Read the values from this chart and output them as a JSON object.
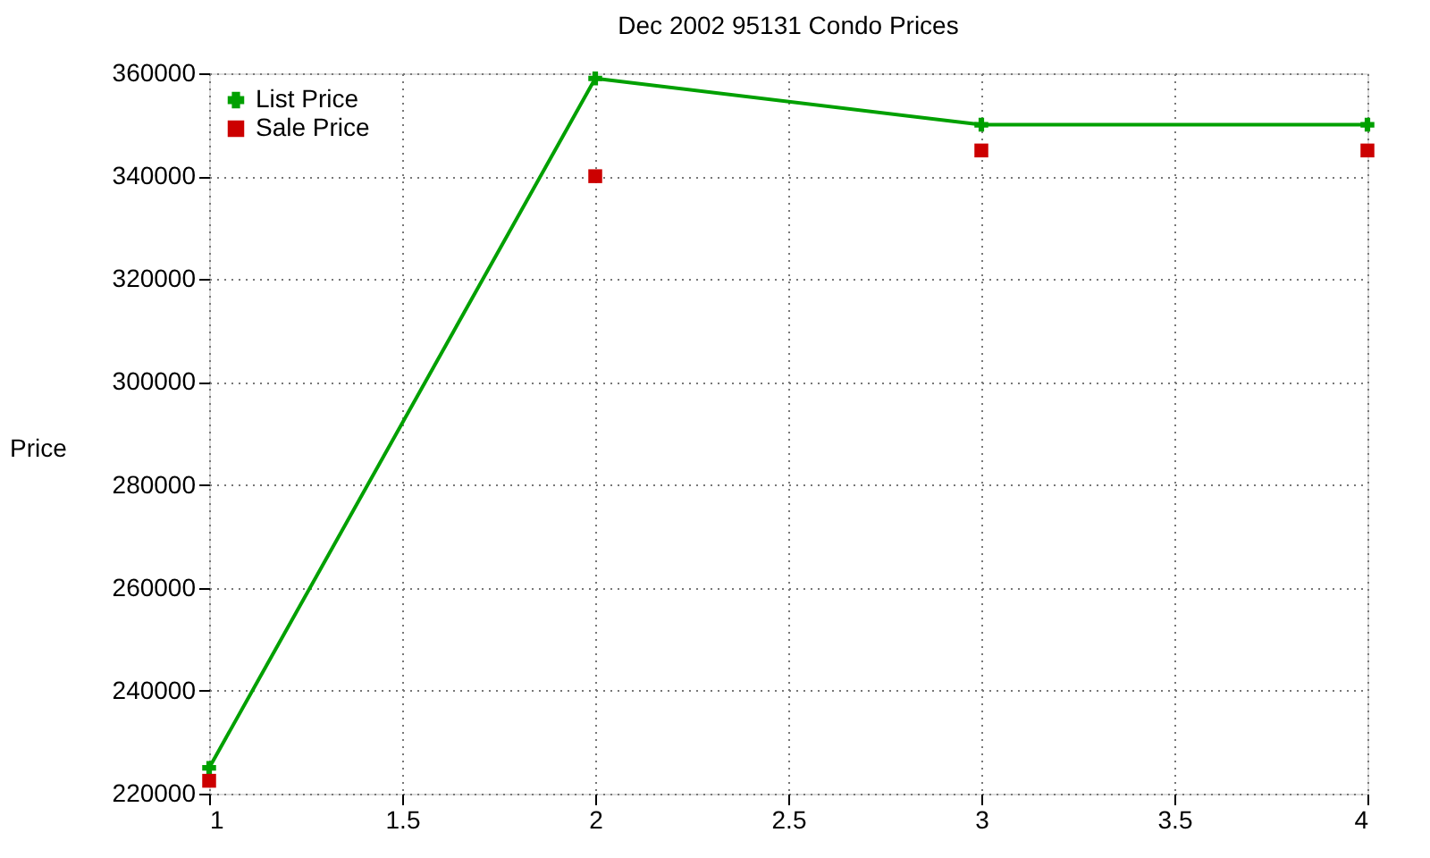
{
  "chart_data": {
    "type": "line",
    "title": "Dec 2002 95131 Condo Prices",
    "ylabel": "Price",
    "x": [
      1,
      2,
      3,
      4
    ],
    "series": [
      {
        "name": "List Price",
        "marker": "cross",
        "color": "#00a000",
        "values": [
          225000,
          359000,
          350000,
          350000
        ]
      },
      {
        "name": "Sale Price",
        "type": "scatter",
        "marker": "square",
        "color": "#cc0000",
        "values": [
          222500,
          340000,
          345000,
          345000
        ]
      }
    ],
    "xlim": [
      1,
      4
    ],
    "xticks": [
      1,
      1.5,
      2,
      2.5,
      3,
      3.5,
      4
    ],
    "ylim": [
      220000,
      360000
    ],
    "yticks": [
      220000,
      240000,
      260000,
      280000,
      300000,
      320000,
      340000,
      360000
    ],
    "grid": true,
    "legend": "top left"
  }
}
